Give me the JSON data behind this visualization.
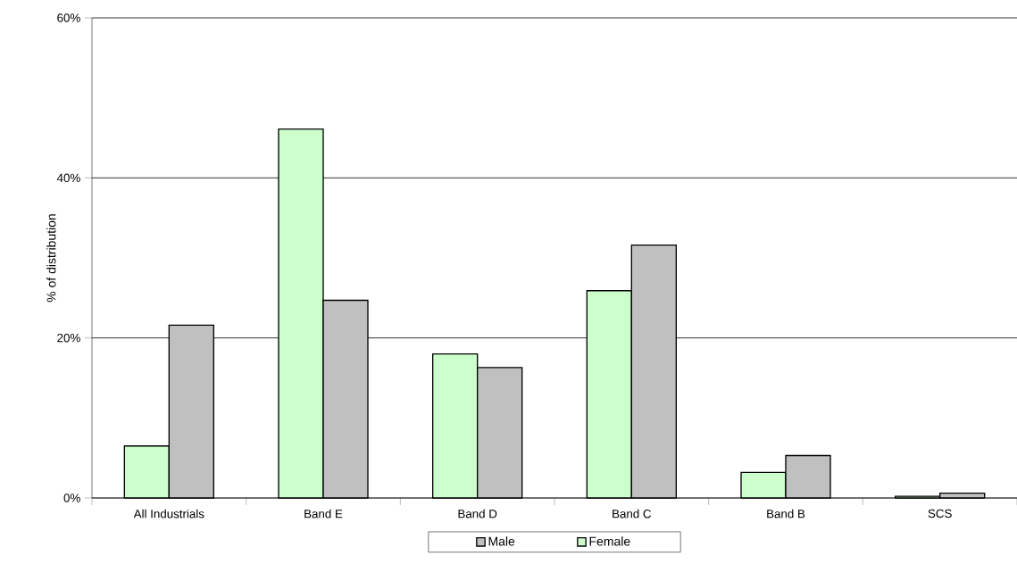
{
  "chart_data": {
    "type": "bar",
    "ylabel": "% of distribution",
    "categories": [
      "All Industrials",
      "Band E",
      "Band  D",
      "Band C",
      "Band B",
      "SCS"
    ],
    "series": [
      {
        "name": "Female",
        "color": "#ccffcc",
        "values": [
          6.5,
          46.1,
          18.0,
          25.9,
          3.2,
          0.2
        ]
      },
      {
        "name": "Male",
        "color": "#c0c0c0",
        "values": [
          21.6,
          24.7,
          16.3,
          31.6,
          5.3,
          0.6
        ]
      }
    ],
    "ylim": [
      0,
      60
    ],
    "yticks": [
      {
        "value": 0,
        "label": "0%"
      },
      {
        "value": 20,
        "label": "20%"
      },
      {
        "value": 40,
        "label": "40%"
      },
      {
        "value": 60,
        "label": "60%"
      }
    ],
    "grid": "y",
    "legend": "bottom"
  }
}
